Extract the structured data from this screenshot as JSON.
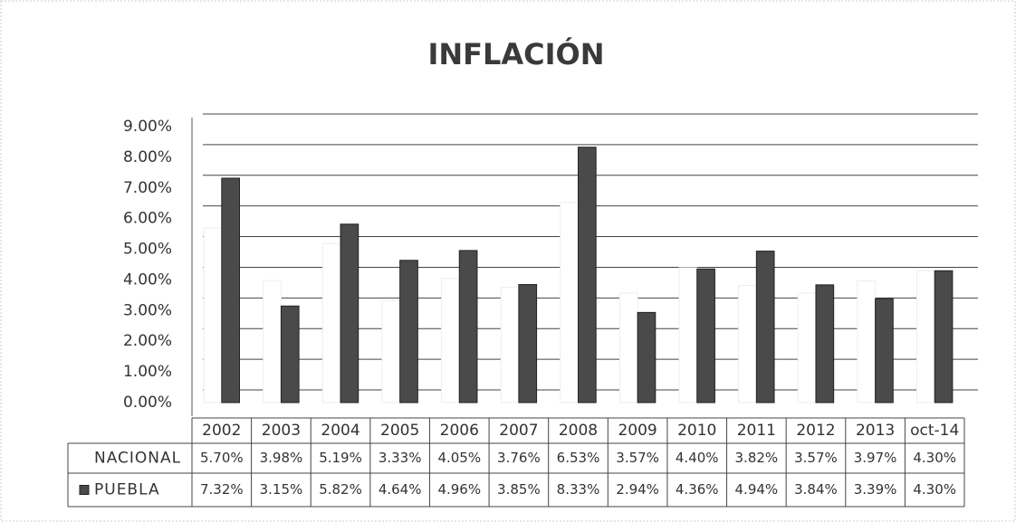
{
  "chart_data": {
    "type": "bar",
    "title": "INFLACIÓN",
    "categories": [
      "2002",
      "2003",
      "2004",
      "2005",
      "2006",
      "2007",
      "2008",
      "2009",
      "2010",
      "2011",
      "2012",
      "2013",
      "oct-14"
    ],
    "series": [
      {
        "name": "NACIONAL",
        "color": "#ffffff",
        "values": [
          5.7,
          3.98,
          5.19,
          3.33,
          4.05,
          3.76,
          6.53,
          3.57,
          4.4,
          3.82,
          3.57,
          3.97,
          4.3
        ],
        "value_labels": [
          "5.70%",
          "3.98%",
          "5.19%",
          "3.33%",
          "4.05%",
          "3.76%",
          "6.53%",
          "3.57%",
          "4.40%",
          "3.82%",
          "3.57%",
          "3.97%",
          "4.30%"
        ]
      },
      {
        "name": "PUEBLA",
        "color": "#4a4a4a",
        "values": [
          7.32,
          3.15,
          5.82,
          4.64,
          4.96,
          3.85,
          8.33,
          2.94,
          4.36,
          4.94,
          3.84,
          3.39,
          4.3
        ],
        "value_labels": [
          "7.32%",
          "3.15%",
          "5.82%",
          "4.64%",
          "4.96%",
          "3.85%",
          "8.33%",
          "2.94%",
          "4.36%",
          "4.94%",
          "3.84%",
          "3.39%",
          "4.30%"
        ]
      }
    ],
    "ylim": [
      0,
      9
    ],
    "yticks": [
      {
        "value": 0,
        "label": "0.00%"
      },
      {
        "value": 1,
        "label": "1.00%"
      },
      {
        "value": 2,
        "label": "2.00%"
      },
      {
        "value": 3,
        "label": "3.00%"
      },
      {
        "value": 4,
        "label": "4.00%"
      },
      {
        "value": 5,
        "label": "5.00%"
      },
      {
        "value": 6,
        "label": "6.00%"
      },
      {
        "value": 7,
        "label": "7.00%"
      },
      {
        "value": 8,
        "label": "8.00%"
      },
      {
        "value": 9,
        "label": "9.00%"
      }
    ],
    "grid": true
  }
}
